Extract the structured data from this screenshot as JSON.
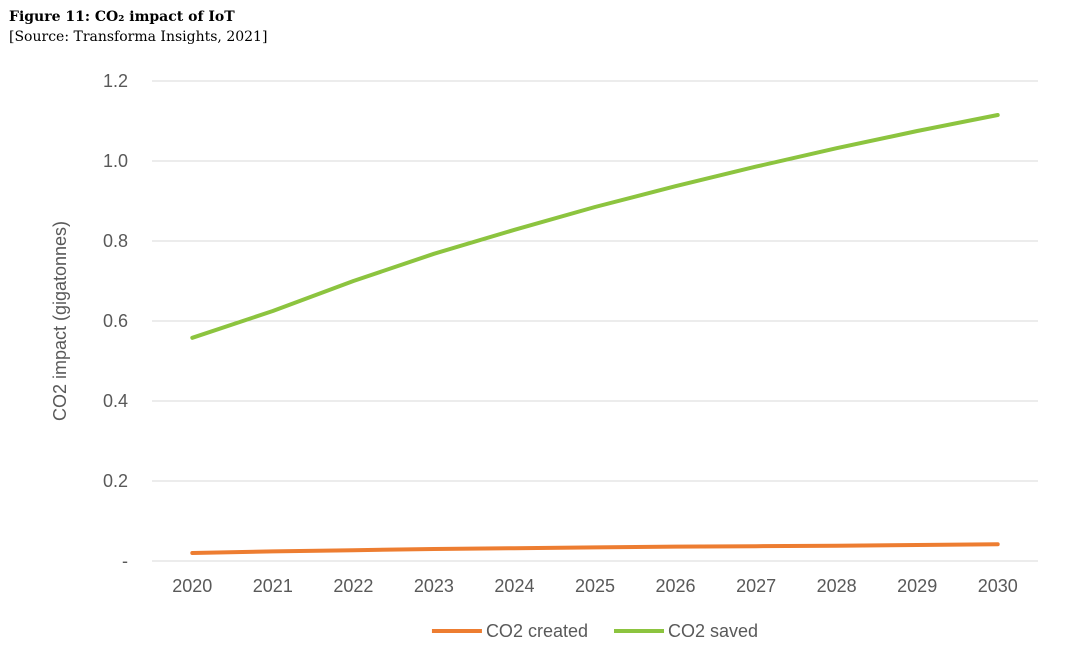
{
  "figure": {
    "title": "Figure 11: CO₂ impact of IoT",
    "source": "[Source: Transforma Insights, 2021]"
  },
  "chart_data": {
    "type": "line",
    "title": "",
    "xlabel": "",
    "ylabel": "CO2 impact (gigatonnes)",
    "categories": [
      "2020",
      "2021",
      "2022",
      "2023",
      "2024",
      "2025",
      "2026",
      "2027",
      "2028",
      "2029",
      "2030"
    ],
    "ylim": [
      0,
      1.2
    ],
    "yticks": [
      {
        "value": 0,
        "label": "-"
      },
      {
        "value": 0.2,
        "label": "0.2"
      },
      {
        "value": 0.4,
        "label": "0.4"
      },
      {
        "value": 0.6,
        "label": "0.6"
      },
      {
        "value": 0.8,
        "label": "0.8"
      },
      {
        "value": 1.0,
        "label": "1.0"
      },
      {
        "value": 1.2,
        "label": "1.2"
      }
    ],
    "grid": true,
    "legend_position": "bottom",
    "series": [
      {
        "name": "CO2 created",
        "color": "#ED7D31",
        "values": [
          0.02,
          0.024,
          0.027,
          0.03,
          0.032,
          0.034,
          0.036,
          0.037,
          0.038,
          0.04,
          0.042
        ]
      },
      {
        "name": "CO2 saved",
        "color": "#8CC43F",
        "values": [
          0.558,
          0.625,
          0.7,
          0.768,
          0.828,
          0.885,
          0.937,
          0.986,
          1.032,
          1.075,
          1.115
        ]
      }
    ]
  }
}
